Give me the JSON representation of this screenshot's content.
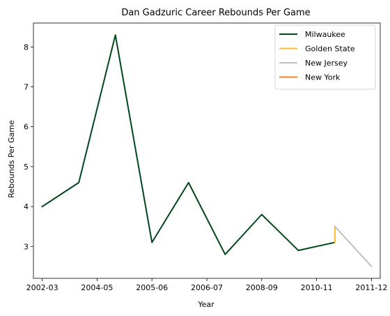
{
  "chart_data": {
    "type": "line",
    "title": "Dan Gadzuric Career Rebounds Per Game",
    "xlabel": "Year",
    "ylabel": "Rebounds Per Game",
    "x_tick_labels": [
      "2002-03",
      "2004-05",
      "2005-06",
      "2006-07",
      "2008-09",
      "2010-11",
      "2011-12"
    ],
    "y_ticks": [
      3,
      4,
      5,
      6,
      7,
      8
    ],
    "ylim": [
      2.2,
      8.6
    ],
    "xlim": [
      -0.24,
      9.24
    ],
    "grid": false,
    "legend_position": "top-right",
    "series": [
      {
        "name": "Milwaukee",
        "color": "#00471b",
        "points": [
          {
            "x": 0,
            "y": 4.0
          },
          {
            "x": 1,
            "y": 4.6
          },
          {
            "x": 2,
            "y": 8.3
          },
          {
            "x": 3,
            "y": 3.1
          },
          {
            "x": 4,
            "y": 4.6
          },
          {
            "x": 5,
            "y": 2.8
          },
          {
            "x": 6,
            "y": 3.8
          },
          {
            "x": 7,
            "y": 2.9
          },
          {
            "x": 8,
            "y": 3.1
          }
        ]
      },
      {
        "name": "Golden State",
        "color": "#fdb927",
        "points": [
          {
            "x": 8,
            "y": 3.1
          },
          {
            "x": 8,
            "y": 3.5
          }
        ]
      },
      {
        "name": "New Jersey",
        "color": "#c0c0c0",
        "points": [
          {
            "x": 8,
            "y": 3.5
          },
          {
            "x": 9,
            "y": 2.5
          }
        ]
      },
      {
        "name": "New York",
        "color": "#f58426",
        "points": []
      }
    ]
  }
}
